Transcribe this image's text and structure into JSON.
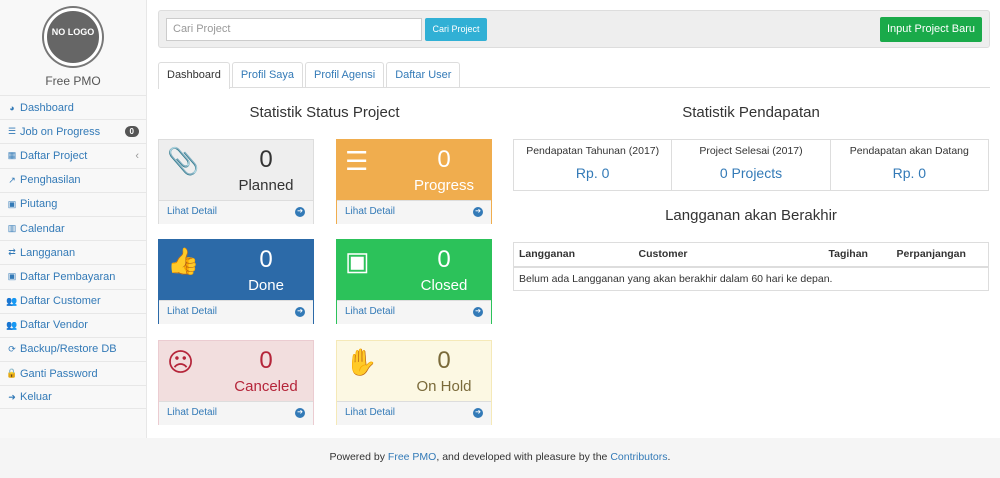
{
  "sidebar": {
    "logo_text": "NO LOGO",
    "brand": "Free PMO",
    "items": [
      {
        "label": "Dashboard",
        "icon": "dashboard-icon"
      },
      {
        "label": "Job on Progress",
        "icon": "tasks-icon",
        "badge": "0"
      },
      {
        "label": "Daftar Project",
        "icon": "table-icon",
        "chevron": "‹"
      },
      {
        "label": "Penghasilan",
        "icon": "line-chart-icon"
      },
      {
        "label": "Piutang",
        "icon": "money-icon"
      },
      {
        "label": "Calendar",
        "icon": "calendar-icon"
      },
      {
        "label": "Langganan",
        "icon": "retweet-icon"
      },
      {
        "label": "Daftar Pembayaran",
        "icon": "money-icon"
      },
      {
        "label": "Daftar Customer",
        "icon": "users-icon"
      },
      {
        "label": "Daftar Vendor",
        "icon": "users-icon"
      },
      {
        "label": "Backup/Restore DB",
        "icon": "refresh-icon"
      },
      {
        "label": "Ganti Password",
        "icon": "lock-icon"
      },
      {
        "label": "Keluar",
        "icon": "sign-out-icon"
      }
    ]
  },
  "topbar": {
    "search_placeholder": "Cari Project",
    "search_button": "Cari Project",
    "new_button": "Input Project Baru"
  },
  "tabs": [
    "Dashboard",
    "Profil Saya",
    "Profil Agensi",
    "Daftar User"
  ],
  "status": {
    "title": "Statistik Status Project",
    "link": "Lihat Detail",
    "cards": [
      {
        "count": "0",
        "label": "Planned",
        "icon": "paperclip-icon",
        "bg": "#eeeeee",
        "color": "#333333"
      },
      {
        "count": "0",
        "label": "Progress",
        "icon": "tasks-icon",
        "bg": "#f0ad4e",
        "color": "#ffffff"
      },
      {
        "count": "0",
        "label": "Done",
        "icon": "thumbs-up-icon",
        "bg": "#2c6aa8",
        "color": "#ffffff"
      },
      {
        "count": "0",
        "label": "Closed",
        "icon": "money-icon",
        "bg": "#2cc25a",
        "color": "#ffffff"
      },
      {
        "count": "0",
        "label": "Canceled",
        "icon": "frown-icon",
        "bg": "#f2dede",
        "color": "#b5253a"
      },
      {
        "count": "0",
        "label": "On Hold",
        "icon": "hand-icon",
        "bg": "#fcf8e3",
        "color": "#7a6a3a"
      }
    ]
  },
  "revenue": {
    "title": "Statistik Pendapatan",
    "items": [
      {
        "label": "Pendapatan Tahunan (2017)",
        "value": "Rp. 0"
      },
      {
        "label": "Project Selesai (2017)",
        "value": "0 Projects"
      },
      {
        "label": "Pendapatan akan Datang",
        "value": "Rp. 0"
      }
    ]
  },
  "subs": {
    "title": "Langganan akan Berakhir",
    "headers": [
      "Langganan",
      "Customer",
      "Tagihan",
      "Perpanjangan"
    ],
    "empty": "Belum ada Langganan yang akan berakhir dalam 60 hari ke depan."
  },
  "footer": {
    "pre": "Powered by ",
    "link1": "Free PMO",
    "mid": ", and developed with pleasure by the ",
    "link2": "Contributors",
    "post": "."
  }
}
